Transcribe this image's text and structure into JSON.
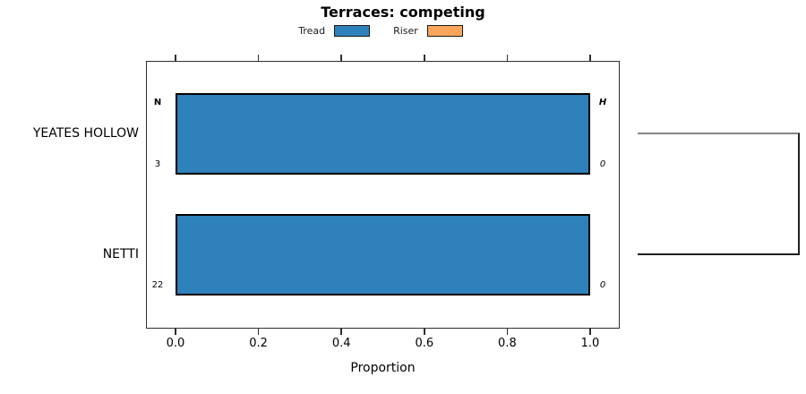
{
  "chart_data": {
    "type": "bar",
    "orientation": "horizontal",
    "title": "Terraces: competing",
    "xlabel": "Proportion",
    "xlim": [
      0,
      1
    ],
    "xticks": [
      0,
      0.2,
      0.4,
      0.6,
      0.8,
      1
    ],
    "xtick_labels": [
      "0.0",
      "0.2",
      "0.4",
      "0.6",
      "0.8",
      "1.0"
    ],
    "categories": [
      "YEATES HOLLOW",
      "NETTI"
    ],
    "grid": "off",
    "legend_position": "top",
    "series": [
      {
        "name": "Tread",
        "color": "#2e81ba",
        "values": [
          1.0,
          1.0
        ]
      },
      {
        "name": "Riser",
        "color": "#fba55d",
        "values": [
          0.0,
          0.0
        ]
      }
    ],
    "row_annotations": [
      {
        "left_header": "N",
        "left_count": "3",
        "right_header": "H",
        "right_count": "0"
      },
      {
        "left_header": "",
        "left_count": "22",
        "right_header": "",
        "right_count": "0"
      }
    ],
    "colors": {
      "tread": "#2e81ba",
      "riser": "#fba55d",
      "bar_edge": "#000000",
      "frame": "#2e2e2e"
    }
  }
}
